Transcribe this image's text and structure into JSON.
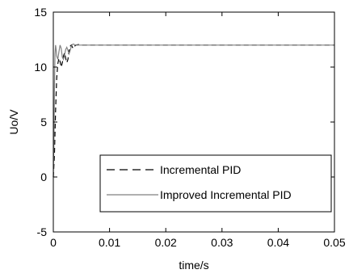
{
  "chart_data": {
    "type": "line",
    "xlabel": "time/s",
    "ylabel": "Uo/V",
    "xlim": [
      0,
      0.05
    ],
    "ylim": [
      -5,
      15
    ],
    "x_ticks": [
      0,
      0.01,
      0.02,
      0.03,
      0.04,
      0.05
    ],
    "x_tick_labels": [
      "0",
      "0.01",
      "0.02",
      "0.03",
      "0.04",
      "0.05"
    ],
    "y_ticks": [
      -5,
      0,
      5,
      10,
      15
    ],
    "y_tick_labels": [
      "-5",
      "0",
      "5",
      "10",
      "15"
    ],
    "grid": false,
    "legend_position": "lower-right",
    "series": [
      {
        "name": "Incremental PID",
        "style": "dashed",
        "color": "#000000",
        "x": [
          0,
          0.0002,
          0.0004,
          0.0006,
          0.0008,
          0.001,
          0.0012,
          0.0014,
          0.0016,
          0.0018,
          0.002,
          0.0022,
          0.0024,
          0.0026,
          0.0028,
          0.003,
          0.0032,
          0.0034,
          0.0036,
          0.0038,
          0.004,
          0.0045,
          0.005,
          0.006,
          0.008,
          0.01,
          0.02,
          0.03,
          0.04,
          0.05
        ],
        "y": [
          0,
          2.0,
          6.0,
          9.0,
          10.3,
          10.8,
          10.5,
          10.0,
          10.4,
          11.0,
          11.3,
          10.8,
          10.4,
          10.7,
          11.5,
          11.9,
          12.0,
          11.8,
          11.7,
          11.9,
          12.0,
          12.05,
          12.0,
          12.0,
          12.0,
          12.0,
          12.0,
          12.0,
          12.0,
          12.0
        ]
      },
      {
        "name": "Improved Incremental PID",
        "style": "solid",
        "color": "#808080",
        "x": [
          0,
          0.0001,
          0.0002,
          0.0003,
          0.0004,
          0.0005,
          0.0006,
          0.0008,
          0.001,
          0.0012,
          0.0014,
          0.0016,
          0.0018,
          0.002,
          0.0022,
          0.0024,
          0.0026,
          0.0028,
          0.003,
          0.0032,
          0.0035,
          0.004,
          0.005,
          0.006,
          0.008,
          0.01,
          0.02,
          0.03,
          0.04,
          0.05
        ],
        "y": [
          0,
          3.0,
          8.0,
          11.2,
          12.0,
          11.6,
          11.0,
          10.7,
          11.4,
          12.0,
          11.7,
          10.9,
          10.7,
          11.1,
          11.6,
          11.8,
          11.5,
          11.2,
          11.5,
          11.9,
          12.1,
          12.0,
          12.0,
          12.0,
          12.0,
          12.0,
          12.0,
          12.0,
          12.0,
          12.0
        ]
      }
    ]
  }
}
